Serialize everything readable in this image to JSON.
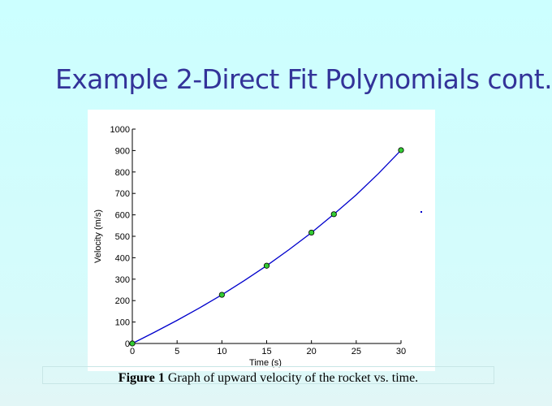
{
  "slide": {
    "title": "Example 2-Direct Fit Polynomials cont.",
    "caption_label": "Figure 1",
    "caption_text": " Graph of upward velocity of the rocket vs. time."
  },
  "colors": {
    "title": "#333399",
    "curve": "#0000cc",
    "marker_fill": "#33cc33",
    "marker_edge": "#000000"
  },
  "chart_data": {
    "type": "line",
    "title": "",
    "xlabel": "Time (s)",
    "ylabel": "Velocity (m/s)",
    "xlim": [
      0,
      30
    ],
    "ylim": [
      0,
      1000
    ],
    "xticks": [
      0,
      5,
      10,
      15,
      20,
      25,
      30
    ],
    "yticks": [
      0,
      100,
      200,
      300,
      400,
      500,
      600,
      700,
      800,
      900,
      1000
    ],
    "grid": false,
    "series": [
      {
        "kind": "markers",
        "x": [
          0,
          10,
          15,
          20,
          22.5,
          30
        ],
        "y": [
          0,
          227.04,
          362.78,
          517.35,
          602.97,
          901.67
        ]
      },
      {
        "kind": "fit-curve",
        "x": [
          0,
          2.5,
          5,
          7.5,
          10,
          12.5,
          15,
          17.5,
          20,
          22.5,
          25,
          27.5,
          30
        ],
        "y": [
          0,
          53,
          108,
          166,
          227,
          293,
          363,
          438,
          517,
          603,
          693,
          793,
          902
        ]
      }
    ]
  }
}
